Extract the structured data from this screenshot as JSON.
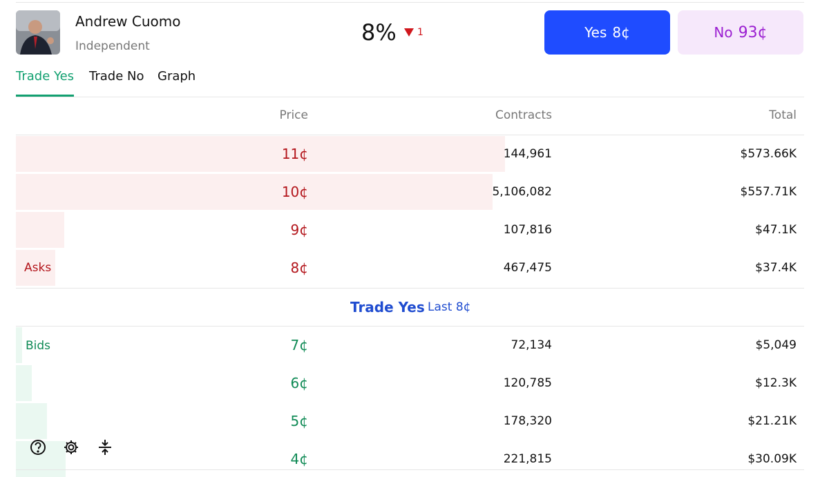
{
  "header": {
    "name": "Andrew Cuomo",
    "party": "Independent",
    "chance": "8%",
    "change": "1",
    "yes_button": {
      "label": "Yes",
      "price": "8¢"
    },
    "no_button": {
      "label": "No",
      "price": "93¢"
    }
  },
  "tabs": [
    "Trade Yes",
    "Trade No",
    "Graph"
  ],
  "table": {
    "columns": [
      "Price",
      "Contracts",
      "Total"
    ],
    "asks_label": "Asks",
    "asks": [
      {
        "price": "11¢",
        "contracts": {
          "value": 144961,
          "label": "144,961"
        },
        "total": "$573.66K"
      },
      {
        "price": "10¢",
        "contracts": {
          "value": 5106082,
          "label": "5,106,082"
        },
        "total": "$557.71K"
      },
      {
        "price": "9¢",
        "contracts": {
          "value": 107816,
          "label": "107,816"
        },
        "total": "$47.1K"
      },
      {
        "price": "8¢",
        "contracts": {
          "value": 467475,
          "label": "467,475"
        },
        "total": "$37.4K"
      }
    ],
    "spread": {
      "title": "Trade Yes",
      "last": "Last 8¢"
    },
    "bids_label": "Bids",
    "bids": [
      {
        "price": "7¢",
        "contracts": {
          "value": 72134,
          "label": "72,134"
        },
        "total": "$5,049"
      },
      {
        "price": "6¢",
        "contracts": {
          "value": 120785,
          "label": "120,785"
        },
        "total": "$12.3K"
      },
      {
        "price": "5¢",
        "contracts": {
          "value": 178320,
          "label": "178,320"
        },
        "total": "$21.21K"
      },
      {
        "price": "4¢",
        "contracts": {
          "value": 221815,
          "label": "221,815"
        },
        "total": "$30.09K"
      }
    ]
  }
}
